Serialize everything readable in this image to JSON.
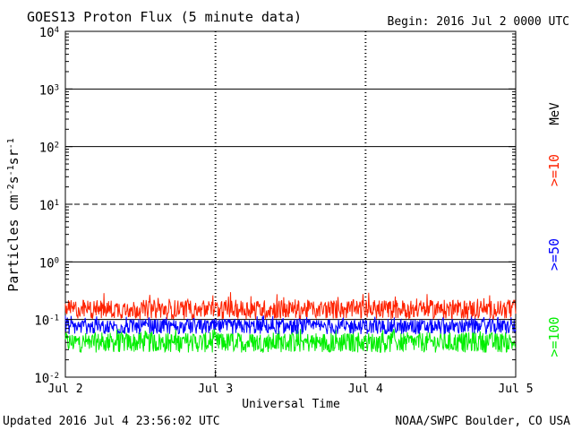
{
  "header": {
    "title": "GOES13 Proton Flux (5 minute data)",
    "begin": "Begin: 2016 Jul 2 0000 UTC"
  },
  "footer": {
    "updated": "Updated 2016 Jul  4 23:56:02 UTC",
    "credit": "NOAA/SWPC Boulder, CO USA"
  },
  "colors": {
    "ge10": "#ff2200",
    "ge50": "#0000ff",
    "ge100": "#00ee00",
    "mev": "#000000",
    "thresholds": "#000000"
  },
  "chart_data": {
    "type": "line",
    "title": "GOES13 Proton Flux (5 minute data)",
    "xlabel": "Universal Time",
    "ylabel": "Particles cm-2s-1sr-1",
    "y_scale": "log",
    "ylim": [
      0.01,
      10000
    ],
    "y_ticks": [
      {
        "value": 0.01,
        "base": "10",
        "exp": "-2"
      },
      {
        "value": 0.1,
        "base": "10",
        "exp": "-1"
      },
      {
        "value": 1,
        "base": "10",
        "exp": "0"
      },
      {
        "value": 10,
        "base": "10",
        "exp": "1"
      },
      {
        "value": 100,
        "base": "10",
        "exp": "2"
      },
      {
        "value": 1000,
        "base": "10",
        "exp": "3"
      },
      {
        "value": 10000,
        "base": "10",
        "exp": "4"
      }
    ],
    "x_ticks": [
      "Jul 2",
      "Jul 3",
      "Jul 4",
      "Jul 5"
    ],
    "xlim": [
      "2016-07-02 00:00",
      "2016-07-05 00:00"
    ],
    "horizontal_lines": [
      {
        "value": 1000,
        "style": "solid"
      },
      {
        "value": 100,
        "style": "solid"
      },
      {
        "value": 10,
        "style": "dashed"
      },
      {
        "value": 1,
        "style": "solid"
      },
      {
        "value": 0.1,
        "style": "solid"
      }
    ],
    "unit_label": "MeV",
    "grid": false,
    "series": [
      {
        "name": ">=10",
        "color": "#ff2200",
        "level": 0.15,
        "spread_low": 0.1,
        "spread_high": 0.3
      },
      {
        "name": ">=50",
        "color": "#0000ff",
        "level": 0.075,
        "spread_low": 0.05,
        "spread_high": 0.12
      },
      {
        "name": ">=100",
        "color": "#00ee00",
        "level": 0.04,
        "spread_low": 0.022,
        "spread_high": 0.07
      }
    ]
  }
}
